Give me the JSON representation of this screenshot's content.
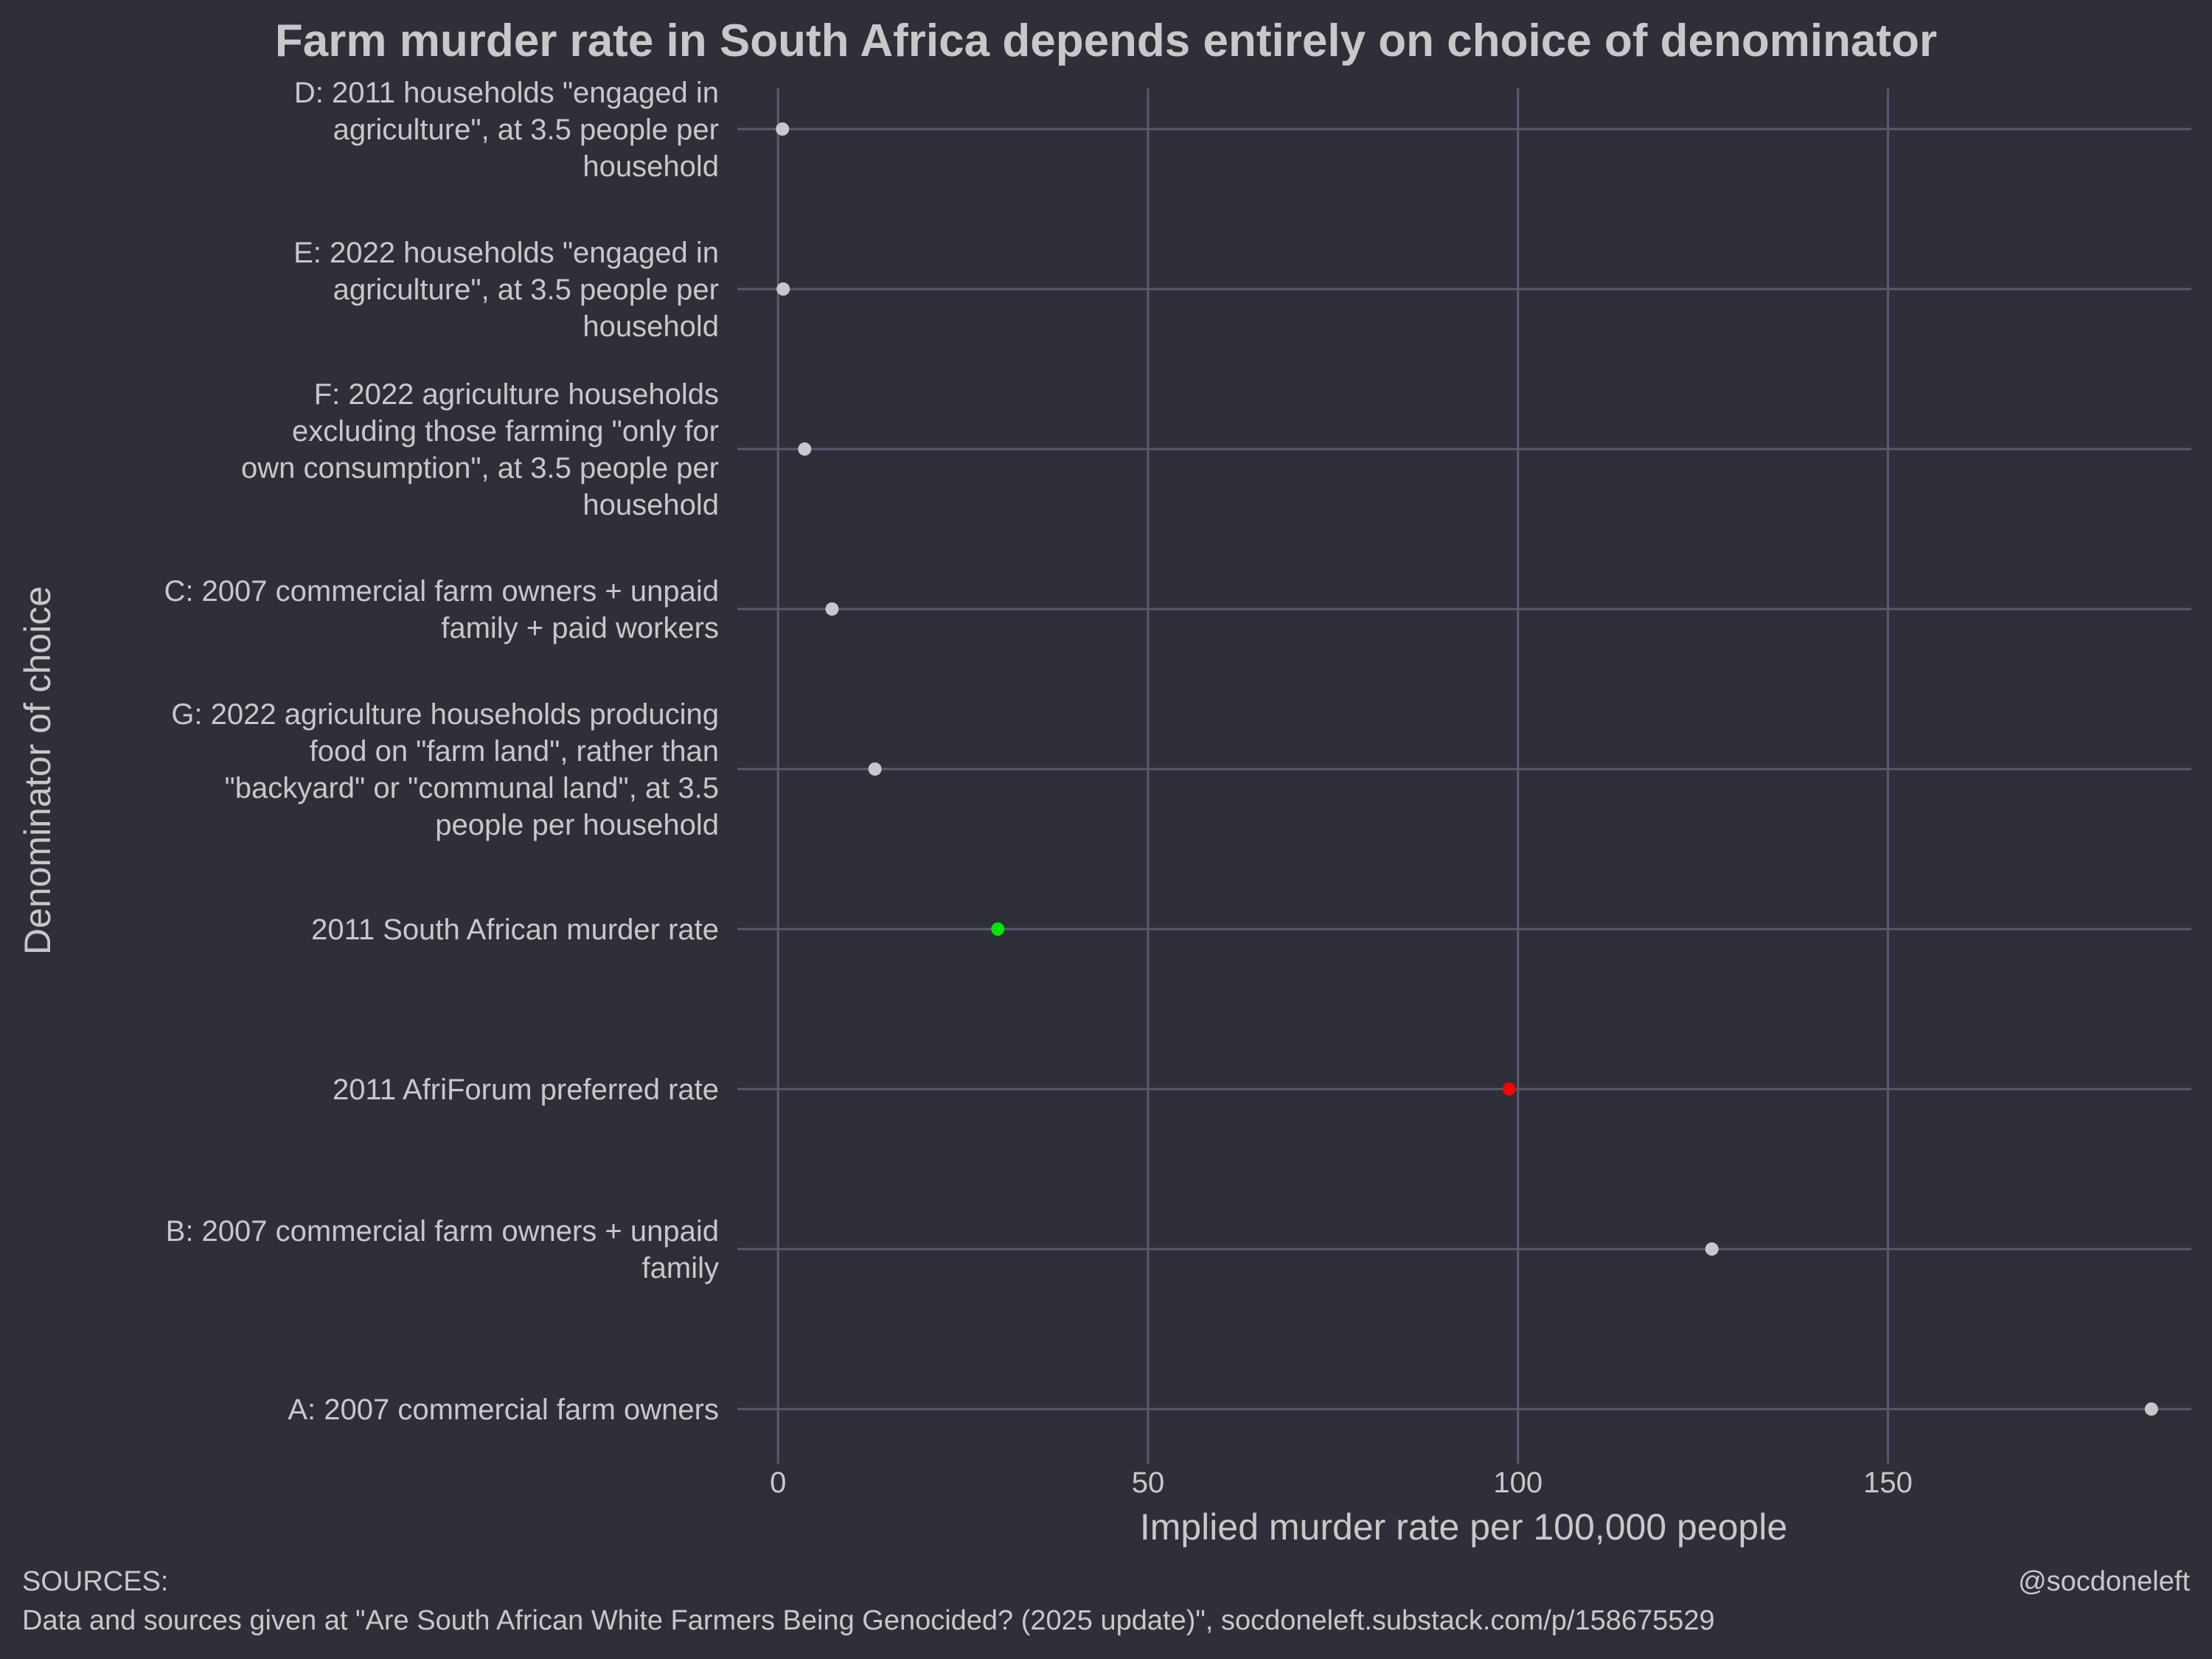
{
  "chart_data": {
    "type": "scatter",
    "title": "Farm murder rate in South Africa depends entirely on choice of denominator",
    "xlabel": "Implied murder rate per 100,000 people",
    "ylabel": "Denominator of choice",
    "xlim": [
      -5.5,
      191
    ],
    "x_ticks": [
      0,
      50,
      100,
      150
    ],
    "x_tick_labels": [
      "0",
      "50",
      "100",
      "150"
    ],
    "grid": true,
    "legend": "none",
    "default_point_color": "#c8c8c8",
    "categories": [
      {
        "label": "D: 2011 households \"engaged in agriculture\", at 3.5 people per household",
        "lines": [
          "D: 2011 households \"engaged in",
          "agriculture\", at 3.5 people per",
          "household"
        ],
        "value": 0.6,
        "color": "#c8c8c8"
      },
      {
        "label": "E: 2022 households \"engaged in agriculture\", at 3.5 people per household",
        "lines": [
          "E: 2022 households \"engaged in",
          "agriculture\", at 3.5 people per",
          "household"
        ],
        "value": 0.7,
        "color": "#c8c8c8"
      },
      {
        "label": "F: 2022 agriculture households excluding those farming \"only for own consumption\", at 3.5 people per household",
        "lines": [
          "F: 2022 agriculture households",
          "excluding those farming \"only for",
          "own consumption\", at 3.5 people per",
          "household"
        ],
        "value": 3.6,
        "color": "#c8c8c8"
      },
      {
        "label": "C: 2007 commercial farm owners + unpaid family + paid workers",
        "lines": [
          "C: 2007 commercial farm owners + unpaid",
          "family + paid workers"
        ],
        "value": 7.3,
        "color": "#c8c8c8"
      },
      {
        "label": "G: 2022 agriculture households producing food on \"farm land\", rather than \"backyard\" or \"communal land\", at 3.5 people per household",
        "lines": [
          "G: 2022 agriculture households producing",
          "food on \"farm land\", rather than",
          "\"backyard\" or \"communal land\", at 3.5",
          "people per household"
        ],
        "value": 13.1,
        "color": "#c8c8c8"
      },
      {
        "label": "2011 South African murder rate",
        "lines": [
          "2011 South African murder rate"
        ],
        "value": 29.7,
        "color": "#00e600"
      },
      {
        "label": "2011 AfriForum preferred rate",
        "lines": [
          "2011 AfriForum preferred rate"
        ],
        "value": 98.8,
        "color": "#ff0000"
      },
      {
        "label": "B: 2007 commercial farm owners + unpaid family",
        "lines": [
          "B: 2007 commercial farm owners + unpaid",
          "family"
        ],
        "value": 126.2,
        "color": "#c8c8c8"
      },
      {
        "label": "A: 2007 commercial farm owners",
        "lines": [
          "A: 2007 commercial farm owners"
        ],
        "value": 185.6,
        "color": "#c8c8c8"
      }
    ]
  },
  "footer": {
    "sources_heading": "SOURCES:",
    "sources_text": "Data and sources given at \"Are South African White Farmers Being Genocided? (2025 update)\", socdoneleft.substack.com/p/158675529",
    "credit": "@socdoneleft"
  },
  "colors": {
    "background": "#2f2f3a",
    "grid": "#5a5a70",
    "text": "#c8c8c8"
  }
}
